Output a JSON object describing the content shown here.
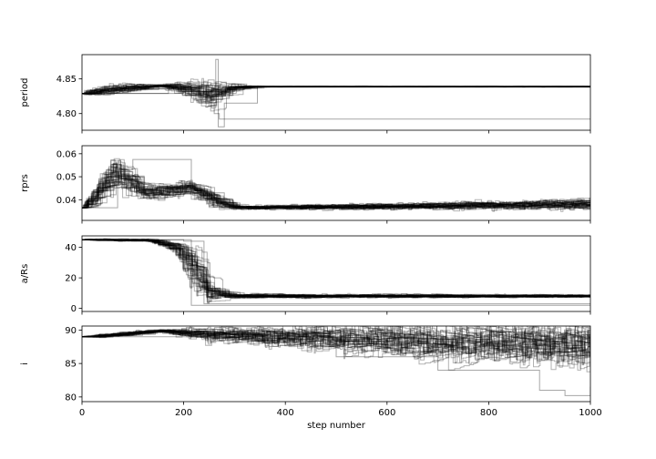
{
  "chart_data": {
    "type": "line",
    "description_of_series": "MCMC walker traces, many semi-transparent black lines per panel",
    "series_color": "#000000",
    "series_opacity": 0.3,
    "xlim": [
      0,
      1000
    ],
    "x_ticks": [
      0,
      200,
      400,
      600,
      800,
      1000
    ],
    "x_tick_labels": [
      "0",
      "200",
      "400",
      "600",
      "800",
      "1000"
    ],
    "xlabel": "step number",
    "n_walkers": 40,
    "panels": [
      {
        "ylabel": "period",
        "ylim": [
          4.776,
          4.885
        ],
        "y_ticks": [
          4.8,
          4.85
        ],
        "y_tick_labels": [
          "4.80",
          "4.85"
        ],
        "start_value": 4.829,
        "phases": [
          {
            "x": 0,
            "y": 4.829,
            "spread": 0.002
          },
          {
            "x": 60,
            "y": 4.836,
            "spread": 0.004
          },
          {
            "x": 150,
            "y": 4.84,
            "spread": 0.001
          },
          {
            "x": 200,
            "y": 4.836,
            "spread": 0.006
          },
          {
            "x": 250,
            "y": 4.828,
            "spread": 0.012
          },
          {
            "x": 300,
            "y": 4.838,
            "spread": 0.002
          },
          {
            "x": 350,
            "y": 4.839,
            "spread": 0.0003
          },
          {
            "x": 1000,
            "y": 4.839,
            "spread": 0.0003
          }
        ],
        "outliers": [
          {
            "points": [
              [
                0,
                4.829
              ],
              [
                170,
                4.838
              ],
              [
                230,
                4.815
              ],
              [
                260,
                4.8
              ],
              [
                270,
                4.792
              ],
              [
                1000,
                4.792
              ]
            ]
          },
          {
            "points": [
              [
                0,
                4.829
              ],
              [
                200,
                4.838
              ],
              [
                255,
                4.808
              ],
              [
                263,
                4.878
              ],
              [
                268,
                4.781
              ],
              [
                280,
                4.815
              ],
              [
                345,
                4.838
              ],
              [
                1000,
                4.839
              ]
            ]
          }
        ]
      },
      {
        "ylabel": "rprs",
        "ylim": [
          0.031,
          0.0635
        ],
        "y_ticks": [
          0.04,
          0.05,
          0.06
        ],
        "y_tick_labels": [
          "0.04",
          "0.05",
          "0.06"
        ],
        "start_value": 0.0365,
        "phases": [
          {
            "x": 0,
            "y": 0.0365,
            "spread": 0.0005
          },
          {
            "x": 60,
            "y": 0.052,
            "spread": 0.0045
          },
          {
            "x": 120,
            "y": 0.043,
            "spread": 0.002
          },
          {
            "x": 210,
            "y": 0.045,
            "spread": 0.002
          },
          {
            "x": 260,
            "y": 0.039,
            "spread": 0.002
          },
          {
            "x": 300,
            "y": 0.0365,
            "spread": 0.0005
          },
          {
            "x": 600,
            "y": 0.037,
            "spread": 0.0008
          },
          {
            "x": 1000,
            "y": 0.038,
            "spread": 0.0015
          }
        ],
        "outliers": [
          {
            "points": [
              [
                0,
                0.0365
              ],
              [
                70,
                0.053
              ],
              [
                100,
                0.0575
              ],
              [
                205,
                0.0575
              ],
              [
                215,
                0.043
              ],
              [
                280,
                0.037
              ],
              [
                1000,
                0.037
              ]
            ]
          }
        ]
      },
      {
        "ylabel": "a/Rs",
        "ylim": [
          -2,
          47.5
        ],
        "y_ticks": [
          0,
          20,
          40
        ],
        "y_tick_labels": [
          "0",
          "20",
          "40"
        ],
        "start_value": 45,
        "phases": [
          {
            "x": 0,
            "y": 45,
            "spread": 0.3
          },
          {
            "x": 130,
            "y": 44.5,
            "spread": 0.5
          },
          {
            "x": 180,
            "y": 40,
            "spread": 2
          },
          {
            "x": 215,
            "y": 25,
            "spread": 9
          },
          {
            "x": 245,
            "y": 10,
            "spread": 4
          },
          {
            "x": 290,
            "y": 8,
            "spread": 0.8
          },
          {
            "x": 1000,
            "y": 8,
            "spread": 0.5
          }
        ],
        "outliers": [
          {
            "points": [
              [
                0,
                45
              ],
              [
                210,
                45
              ],
              [
                215,
                2
              ],
              [
                1000,
                2
              ]
            ]
          },
          {
            "points": [
              [
                0,
                45
              ],
              [
                200,
                44
              ],
              [
                240,
                3
              ],
              [
                1000,
                3.5
              ]
            ]
          }
        ]
      },
      {
        "ylabel": "i",
        "ylim": [
          79.3,
          90.6
        ],
        "y_ticks": [
          80,
          85,
          90
        ],
        "y_tick_labels": [
          "80",
          "85",
          "90"
        ],
        "start_value": 89,
        "phases": [
          {
            "x": 0,
            "y": 89,
            "spread": 0.05
          },
          {
            "x": 50,
            "y": 89.2,
            "spread": 0.2
          },
          {
            "x": 150,
            "y": 89.9,
            "spread": 0.15
          },
          {
            "x": 250,
            "y": 89.2,
            "spread": 0.7
          },
          {
            "x": 500,
            "y": 88.5,
            "spread": 1.4
          },
          {
            "x": 800,
            "y": 87.8,
            "spread": 2.0
          },
          {
            "x": 1000,
            "y": 87.5,
            "spread": 2.3
          }
        ],
        "outliers": [
          {
            "points": [
              [
                0,
                89
              ],
              [
                300,
                89.5
              ],
              [
                500,
                86
              ],
              [
                700,
                84
              ],
              [
                900,
                81
              ],
              [
                950,
                80.2
              ],
              [
                1000,
                81.5
              ]
            ]
          }
        ]
      }
    ]
  }
}
